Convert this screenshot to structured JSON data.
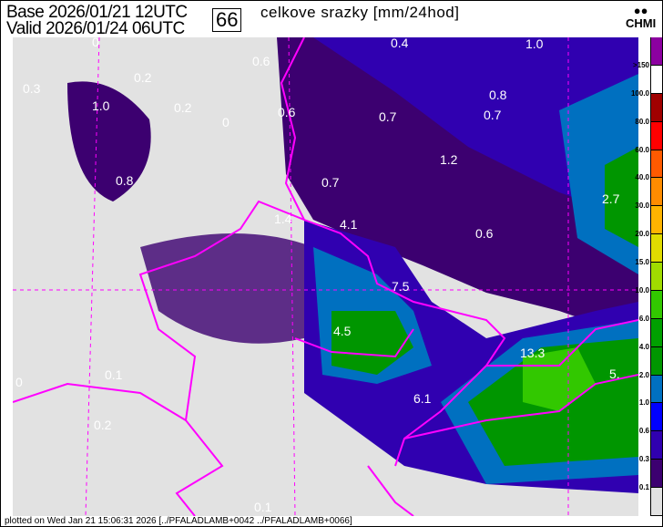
{
  "header": {
    "base": "Base 2026/01/21 12UTC",
    "valid": "Valid 2026/01/24 06UTC",
    "step": "66",
    "title": "celkove srazky [mm/24hod]",
    "logo": "CHMI"
  },
  "legend": {
    "labels": [
      ">150",
      "100.0",
      "80.0",
      "60.0",
      "40.0",
      "30.0",
      "20.0",
      "15.0",
      "10.0",
      "6.0",
      "4.0",
      "2.0",
      "1.0",
      "0.6",
      "0.3",
      "0.1"
    ],
    "colors": [
      "#8c00a0",
      "#ffffff",
      "#a00000",
      "#ff0000",
      "#ff5a00",
      "#ff8c00",
      "#ffb400",
      "#e0dc00",
      "#a0dc00",
      "#32c800",
      "#00a000",
      "#009600",
      "#0070c0",
      "#0000ff",
      "#3000b0",
      "#3c0070",
      "#e2e2e2"
    ]
  },
  "map": {
    "values": [
      "0",
      "0.4",
      "1.0",
      "0.3",
      "0.2",
      "0.6",
      "0.2",
      "0",
      "0.6",
      "0.7",
      "0.8",
      "0.7",
      "1.0",
      "1.2",
      "0.8",
      "0.7",
      "2.7",
      "1.4",
      "4.1",
      "0.6",
      "7.5",
      "4.5",
      "13.3",
      "5.",
      "6.1",
      "0",
      "0.1",
      "0.2",
      "0.1"
    ],
    "border_color": "#ff00ff"
  },
  "footer": "plotted on Wed Jan 21 15:06:31 2026 [../PFALADLAMB+0042 ../PFALADLAMB+0066]"
}
